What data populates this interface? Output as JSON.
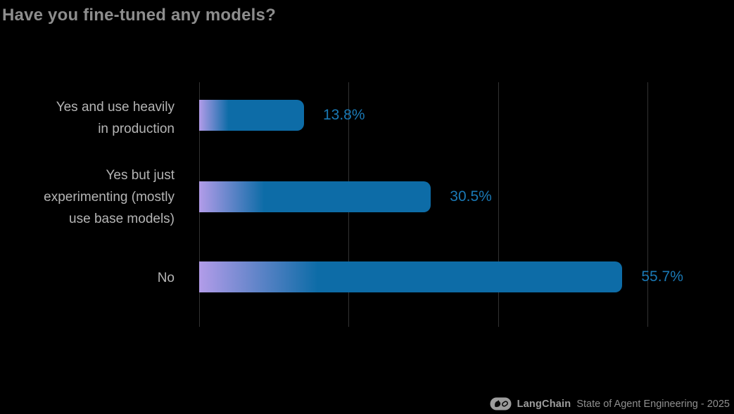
{
  "title": "Have you fine-tuned any models?",
  "chart_data": {
    "type": "bar",
    "orientation": "horizontal",
    "title": "Have you fine-tuned any models?",
    "categories": [
      "Yes and use heavily in production",
      "Yes but just experimenting (mostly use base models)",
      "No"
    ],
    "category_label_lines": [
      [
        "Yes and use heavily",
        "in production"
      ],
      [
        "Yes but just",
        "experimenting (mostly",
        "use base models)"
      ],
      [
        "No"
      ]
    ],
    "values": [
      13.8,
      30.5,
      55.7
    ],
    "value_labels": [
      "13.8%",
      "30.5%",
      "55.7%"
    ],
    "xlabel": "",
    "ylabel": "",
    "xlim": [
      0,
      59
    ],
    "grid": {
      "visible": true,
      "vertical_lines": 4,
      "tick_labels_visible": false
    },
    "legend": "none",
    "bar_style": {
      "gradient_start": "#b29ce9",
      "gradient_end": "#0d6ca7",
      "rounded_right_corners": true
    }
  },
  "colors": {
    "background": "#000000",
    "title": "#8d8d8d",
    "category_label": "#b5b5b5",
    "value_label": "#1a79b5",
    "bar_gradient_start": "#b29ce9",
    "bar_gradient_end": "#0d6ca7",
    "gridline": "#323232",
    "footer_text": "#8f8f8f",
    "brand_text": "#9e9e9e",
    "logo_fill": "#9c9c9c",
    "logo_glyph": "#0a0a0a"
  },
  "footer": {
    "brand": "LangChain",
    "source": "State of Agent Engineering - 2025"
  }
}
